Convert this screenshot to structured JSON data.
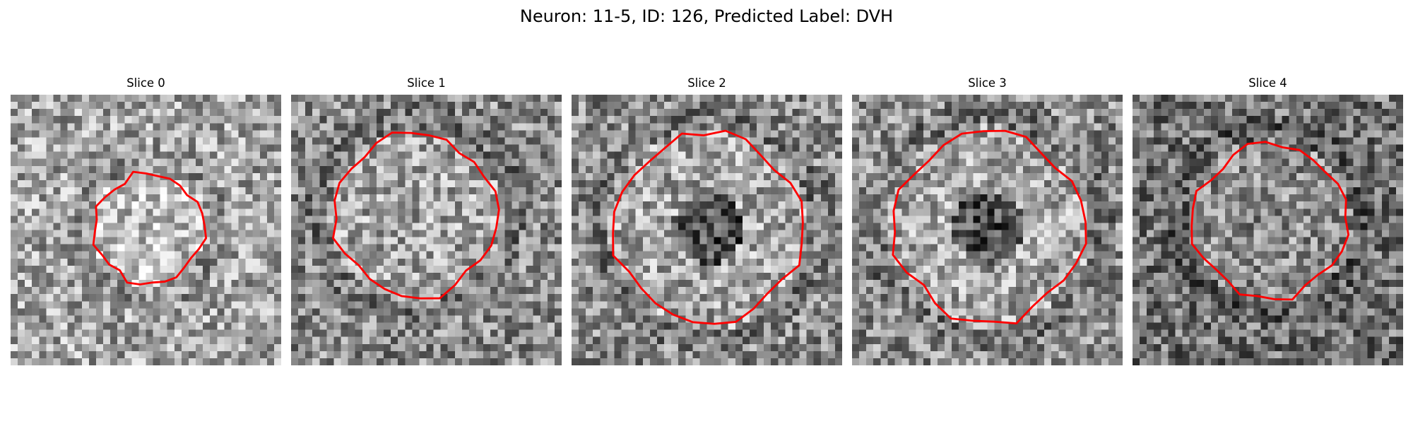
{
  "figure": {
    "title": "Neuron: 11-5, ID: 126, Predicted Label: DVH"
  },
  "panels": [
    {
      "title": "Slice 0",
      "seed": 11,
      "background": "light",
      "center_dark": false,
      "roi": {
        "cx": 19.5,
        "cy": 18.8,
        "r": 8.3,
        "shape": "rough-octagon"
      }
    },
    {
      "title": "Slice 1",
      "seed": 23,
      "background": "medium",
      "center_dark": false,
      "roi": {
        "cx": 17.5,
        "cy": 16.8,
        "r": 12.3,
        "shape": "rough-octagon"
      }
    },
    {
      "title": "Slice 2",
      "seed": 37,
      "background": "medium",
      "center_dark": true,
      "roi": {
        "cx": 19.3,
        "cy": 18.7,
        "r": 14.3,
        "shape": "rough-octagon"
      }
    },
    {
      "title": "Slice 3",
      "seed": 51,
      "background": "medium",
      "center_dark": true,
      "roi": {
        "cx": 19.2,
        "cy": 18.6,
        "r": 14.3,
        "shape": "rough-octagon"
      }
    },
    {
      "title": "Slice 4",
      "seed": 73,
      "background": "dark",
      "center_dark": false,
      "roi": {
        "cx": 19.3,
        "cy": 17.8,
        "r": 11.6,
        "shape": "rough-octagon"
      }
    }
  ],
  "colors": {
    "roi_outline": "#ff0000",
    "colormap": "gray"
  }
}
